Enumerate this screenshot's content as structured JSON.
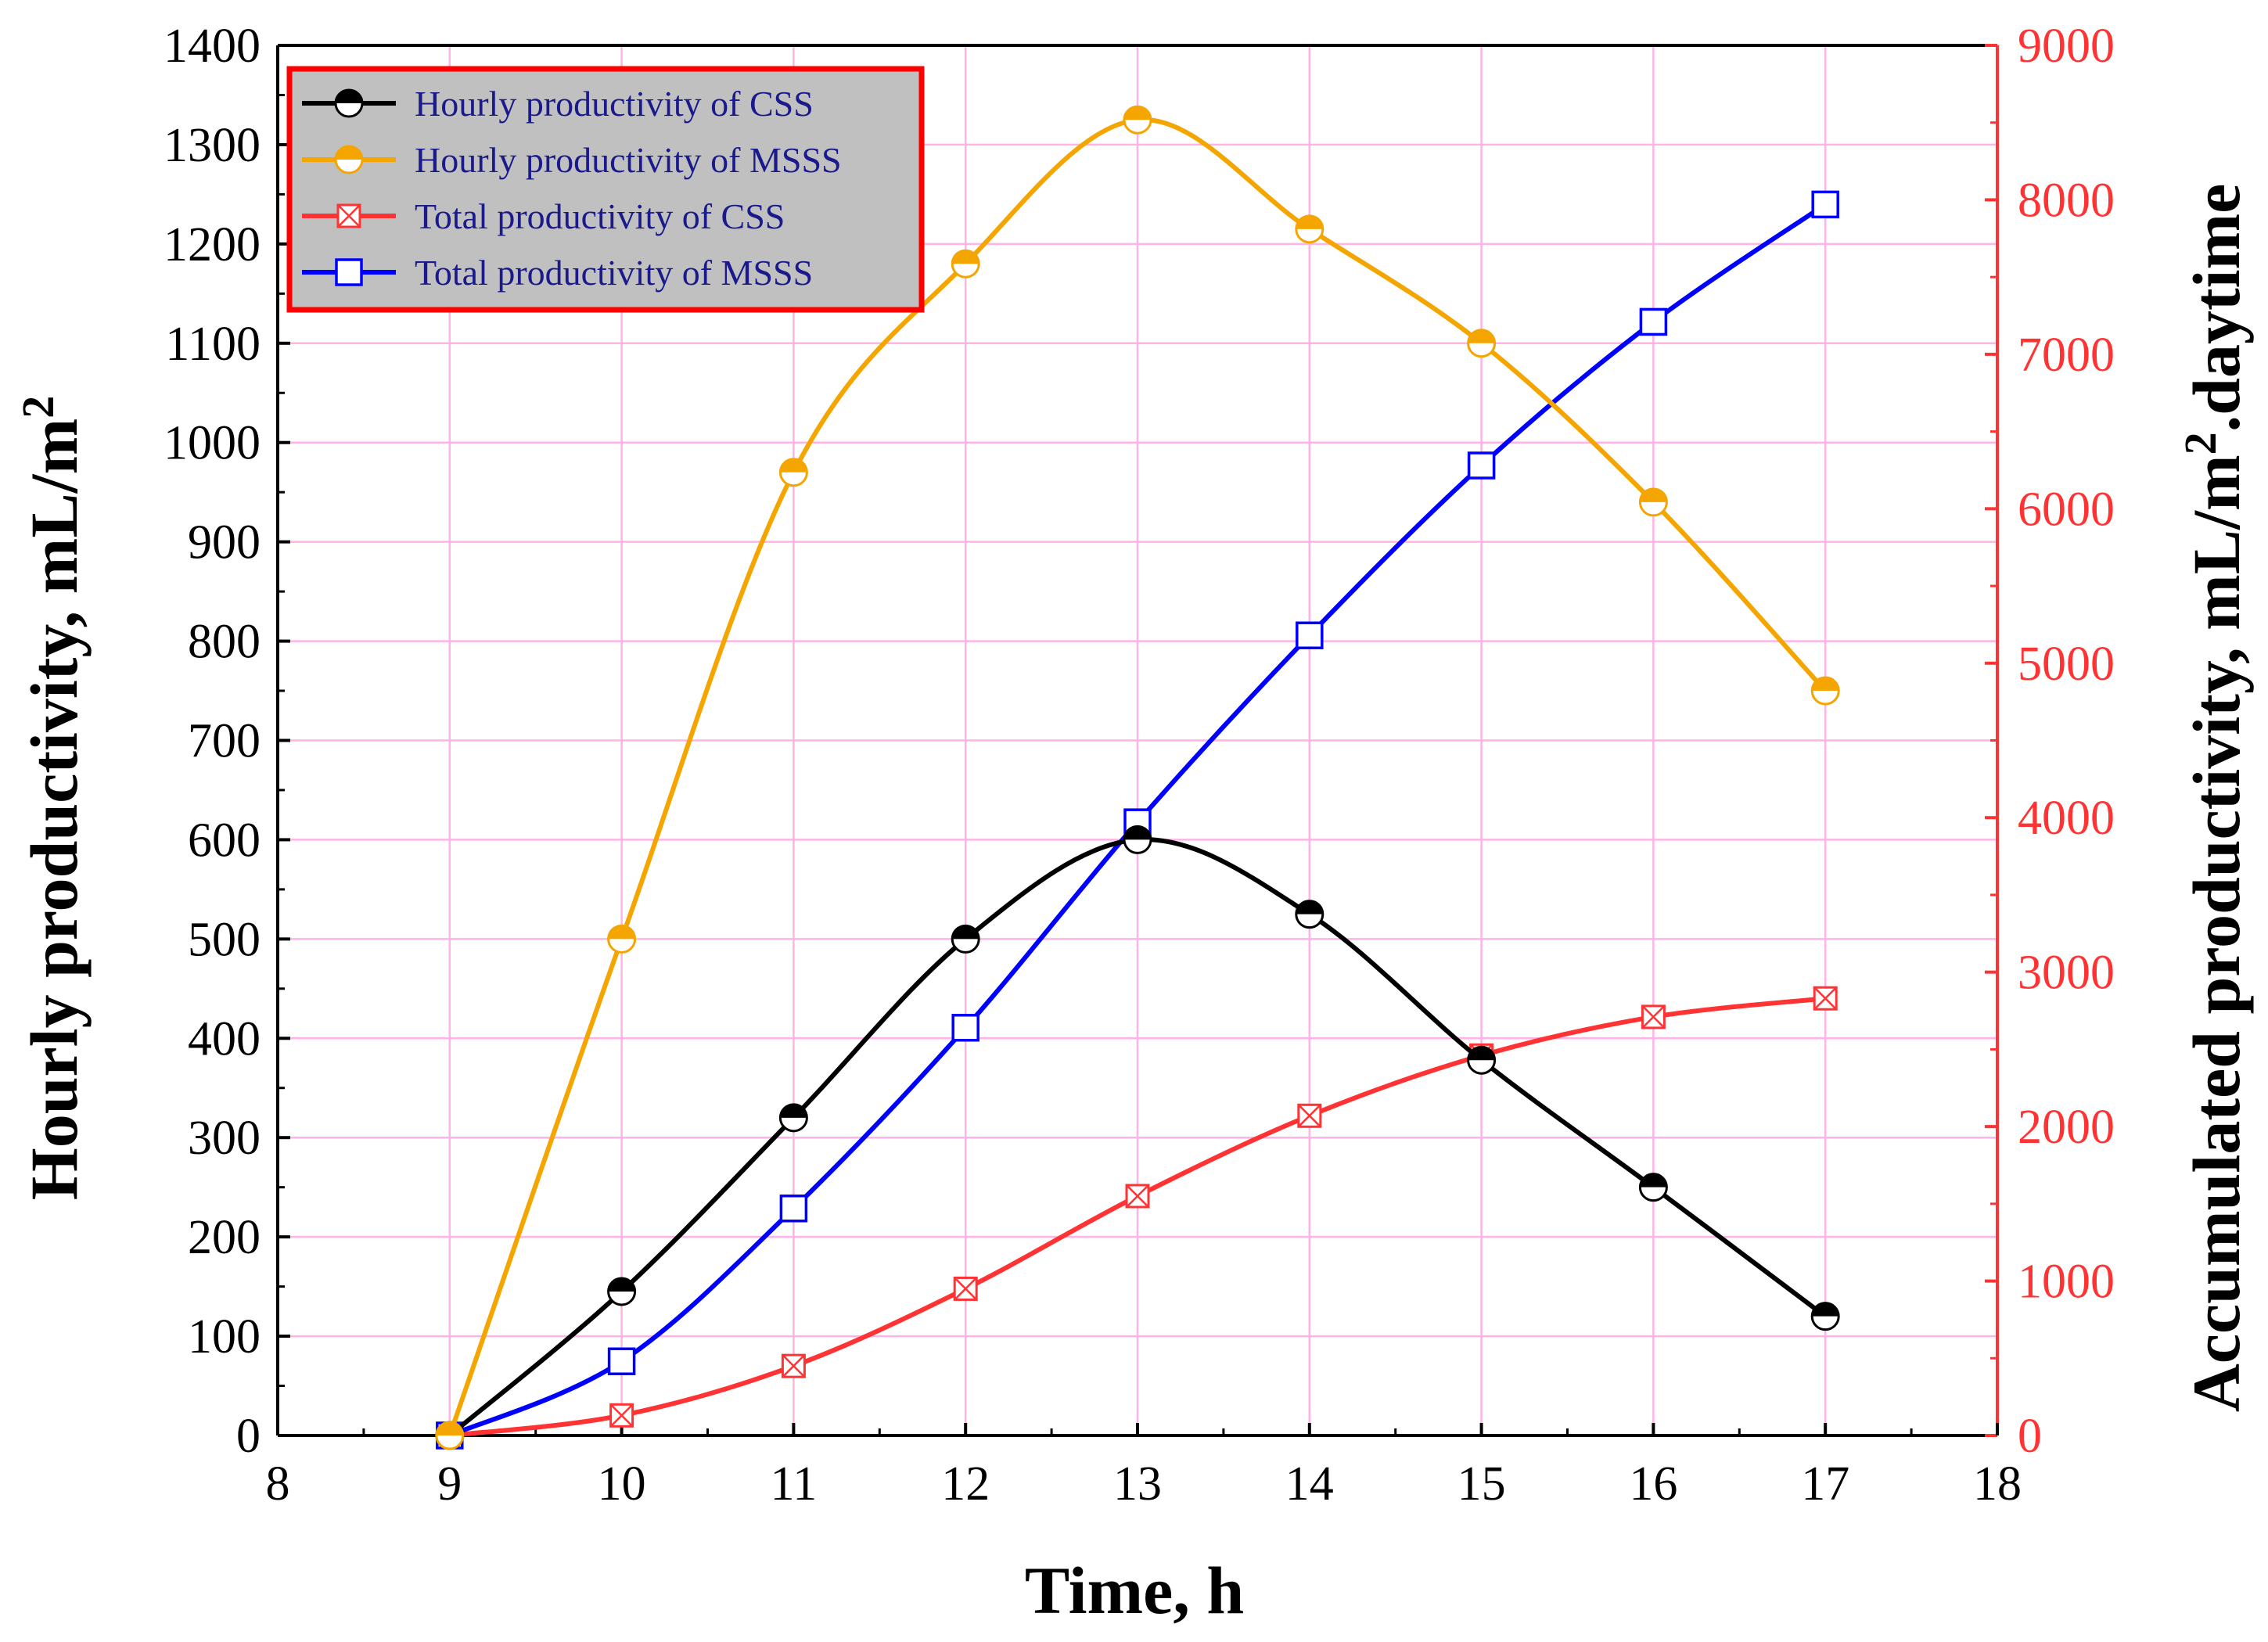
{
  "chart_data": {
    "type": "line",
    "title": "",
    "xlabel": "Time, h",
    "ylabel_left": "Hourly productivity, mL/m",
    "ylabel_left_sup": "2",
    "ylabel_right_pre": "Accumulated productivity, mL/m",
    "ylabel_right_sup": "2",
    "ylabel_right_post": ".daytime",
    "xlim": [
      8,
      18
    ],
    "ylim_left": [
      0,
      1400
    ],
    "ylim_right": [
      0,
      9000
    ],
    "x_ticks": [
      "8",
      "9",
      "10",
      "11",
      "12",
      "13",
      "14",
      "15",
      "16",
      "17",
      "18"
    ],
    "y_left_ticks": [
      "0",
      "100",
      "200",
      "300",
      "400",
      "500",
      "600",
      "700",
      "800",
      "900",
      "1000",
      "1100",
      "1200",
      "1300",
      "1400"
    ],
    "y_right_ticks": [
      "0",
      "1000",
      "2000",
      "3000",
      "4000",
      "5000",
      "6000",
      "7000",
      "8000",
      "9000"
    ],
    "grid": true,
    "legend_position": "top-left",
    "x": [
      9,
      10,
      11,
      12,
      13,
      14,
      15,
      16,
      17
    ],
    "series": [
      {
        "name": "Hourly productivity of CSS",
        "axis": "left",
        "color": "#000000",
        "marker": "half-circle",
        "values": [
          0,
          145,
          320,
          500,
          600,
          525,
          378,
          250,
          120
        ]
      },
      {
        "name": "Hourly productivity of MSSS",
        "axis": "left",
        "color": "#f5a500",
        "marker": "half-circle",
        "values": [
          0,
          500,
          970,
          1180,
          1325,
          1215,
          1100,
          940,
          750
        ]
      },
      {
        "name": "Total productivity of CSS",
        "axis": "right",
        "color": "#ff3333",
        "marker": "crossed-square",
        "values": [
          0,
          130,
          450,
          950,
          1550,
          2070,
          2460,
          2710,
          2830
        ]
      },
      {
        "name": "Total productivity of MSSS",
        "axis": "right",
        "color": "#0000ff",
        "marker": "open-square",
        "values": [
          0,
          480,
          1470,
          2640,
          3970,
          5180,
          6280,
          7210,
          7970
        ]
      }
    ],
    "colors": {
      "right_axis": "#ff3333",
      "grid": "#ffb3e6",
      "legend_bg": "#c0c0c0",
      "legend_border": "#ff0000"
    }
  }
}
